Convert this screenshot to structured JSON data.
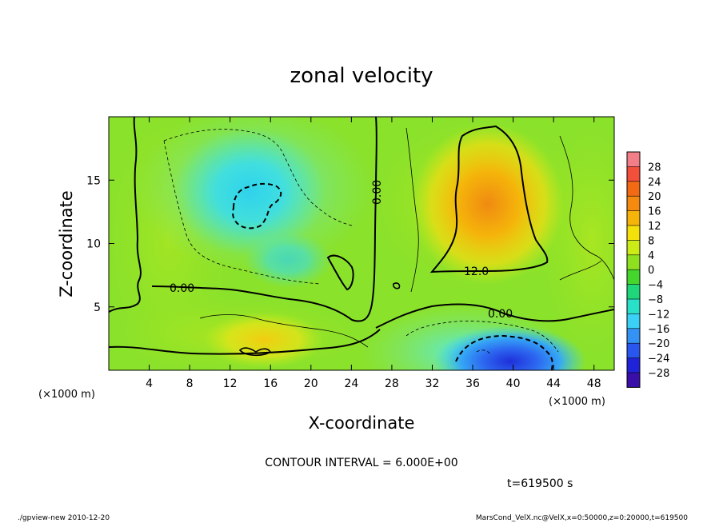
{
  "chart_data": {
    "type": "heatmap",
    "title": "zonal velocity",
    "xlabel": "X-coordinate",
    "ylabel": "Z-coordinate",
    "x_unit": "(×1000 m)",
    "y_unit": "(×1000 m)",
    "xlim": [
      0,
      50
    ],
    "ylim": [
      0,
      20
    ],
    "x_ticks": [
      "4",
      "8",
      "12",
      "16",
      "20",
      "24",
      "28",
      "32",
      "36",
      "40",
      "44",
      "48"
    ],
    "y_ticks": [
      "5",
      "10",
      "15"
    ],
    "x_tick_values": [
      4,
      8,
      12,
      16,
      20,
      24,
      28,
      32,
      36,
      40,
      44,
      48
    ],
    "y_tick_values": [
      5,
      10,
      15
    ],
    "colorbar": {
      "labels": [
        "28",
        "24",
        "20",
        "16",
        "12",
        "8",
        "4",
        "0",
        "−4",
        "−8",
        "−12",
        "−16",
        "−20",
        "−24",
        "−28"
      ],
      "range": [
        -30,
        30
      ],
      "colors": [
        "#f27f87",
        "#f2503a",
        "#f26a14",
        "#f58a0f",
        "#f5b40a",
        "#f5e10a",
        "#cbec17",
        "#8fe01f",
        "#45d62e",
        "#20d67a",
        "#29e0c8",
        "#3bd0f5",
        "#3492f5",
        "#2a56f0",
        "#1f22d6",
        "#3a0fa8"
      ]
    },
    "contour_labels": [
      "0.00",
      "0.00",
      "0.00",
      "12.0"
    ],
    "contour_interval": "CONTOUR INTERVAL = 6.000E+00",
    "time": "t=619500 s",
    "approx_features": [
      {
        "kind": "negative-core",
        "x": 14,
        "z": 13.5,
        "value": -10
      },
      {
        "kind": "negative-lobe",
        "x": 18,
        "z": 8.5,
        "value": -8
      },
      {
        "kind": "positive-core",
        "x": 38,
        "z": 12,
        "value": 16
      },
      {
        "kind": "negative-core",
        "x": 40,
        "z": 1,
        "value": -18
      },
      {
        "kind": "positive-patch",
        "x": 16,
        "z": 2,
        "value": 8
      }
    ]
  },
  "footer": {
    "left": "./gpview-new  2010-12-20",
    "right": "MarsCond_VelX.nc@VelX,x=0:50000,z=0:20000,t=619500"
  }
}
